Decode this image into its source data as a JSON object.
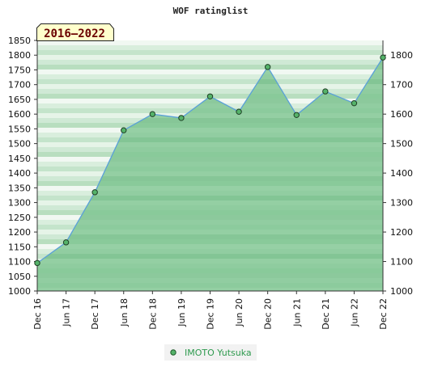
{
  "chart_data": {
    "type": "area",
    "title": "WOF ratinglist",
    "badge": "2016–2022",
    "left_axis": {
      "ylim": [
        1000,
        1850
      ],
      "ticks": [
        1000,
        1050,
        1100,
        1150,
        1200,
        1250,
        1300,
        1350,
        1400,
        1450,
        1500,
        1550,
        1600,
        1650,
        1700,
        1750,
        1800,
        1850
      ]
    },
    "right_axis": {
      "ylim": [
        1000,
        1850
      ],
      "ticks": [
        1000,
        1100,
        1200,
        1300,
        1400,
        1500,
        1600,
        1700,
        1800
      ]
    },
    "categories": [
      "Dec 16",
      "Jun 17",
      "Dec 17",
      "Jun 18",
      "Dec 18",
      "Jun 19",
      "Dec 19",
      "Jun 20",
      "Dec 20",
      "Jun 21",
      "Dec 21",
      "Jun 22",
      "Dec 22"
    ],
    "series": [
      {
        "name": "IMOTO Yutsuka",
        "values": [
          1095,
          1165,
          1335,
          1545,
          1600,
          1587,
          1660,
          1608,
          1760,
          1597,
          1677,
          1637,
          1792
        ]
      }
    ],
    "colors": {
      "line": "#5aa0d8",
      "fill": "#7cc48f",
      "marker": "#2f7d3f",
      "badge_bg": "#ffffcc",
      "badge_text": "#6b0000",
      "legend_text": "#2e9a4e"
    },
    "grid": false,
    "legend_position": "bottom-center"
  }
}
